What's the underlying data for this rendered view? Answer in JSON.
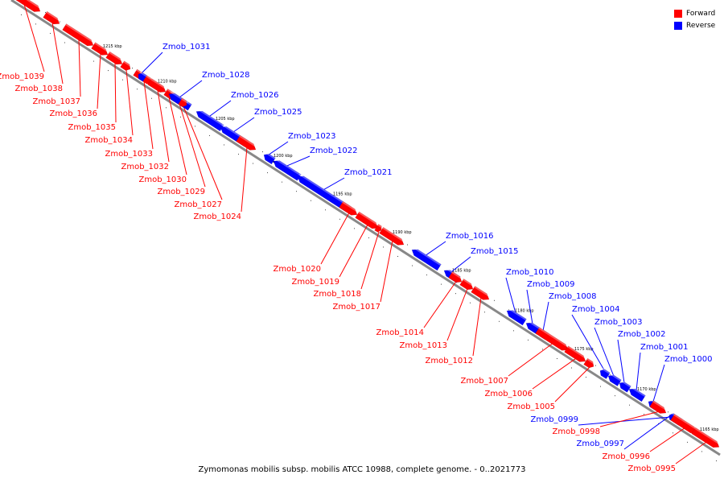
{
  "caption": "Zymomonas mobilis subsp. mobilis ATCC 10988, complete genome. - 0..2021773",
  "legend": [
    {
      "label": "Forward",
      "color": "#ff0000"
    },
    {
      "label": "Reverse",
      "color": "#0000ff"
    }
  ],
  "colors": {
    "forward": "#ff0000",
    "reverse": "#0000ff",
    "backbone": "#888888"
  },
  "ticks": [
    "1215 kbp",
    "1210 kbp",
    "1205 kbp",
    "1200 kbp",
    "1195 kbp",
    "1190 kbp",
    "1185 kbp",
    "1180 kbp",
    "1175 kbp",
    "1170 kbp",
    "1165 kbp"
  ],
  "genes": [
    {
      "name": "Zmob_1039",
      "strand": "forward"
    },
    {
      "name": "Zmob_1038",
      "strand": "forward"
    },
    {
      "name": "Zmob_1037",
      "strand": "forward"
    },
    {
      "name": "Zmob_1036",
      "strand": "forward"
    },
    {
      "name": "Zmob_1035",
      "strand": "forward"
    },
    {
      "name": "Zmob_1034",
      "strand": "forward"
    },
    {
      "name": "Zmob_1033",
      "strand": "forward"
    },
    {
      "name": "Zmob_1032",
      "strand": "forward"
    },
    {
      "name": "Zmob_1031",
      "strand": "reverse"
    },
    {
      "name": "Zmob_1030",
      "strand": "forward"
    },
    {
      "name": "Zmob_1029",
      "strand": "forward"
    },
    {
      "name": "Zmob_1028",
      "strand": "reverse"
    },
    {
      "name": "Zmob_1027",
      "strand": "forward"
    },
    {
      "name": "Zmob_1026",
      "strand": "reverse"
    },
    {
      "name": "Zmob_1025",
      "strand": "reverse"
    },
    {
      "name": "Zmob_1024",
      "strand": "forward"
    },
    {
      "name": "Zmob_1023",
      "strand": "reverse"
    },
    {
      "name": "Zmob_1022",
      "strand": "reverse"
    },
    {
      "name": "Zmob_1021",
      "strand": "reverse"
    },
    {
      "name": "Zmob_1020",
      "strand": "forward"
    },
    {
      "name": "Zmob_1019",
      "strand": "forward"
    },
    {
      "name": "Zmob_1018",
      "strand": "forward"
    },
    {
      "name": "Zmob_1017",
      "strand": "forward"
    },
    {
      "name": "Zmob_1016",
      "strand": "reverse"
    },
    {
      "name": "Zmob_1015",
      "strand": "reverse"
    },
    {
      "name": "Zmob_1014",
      "strand": "forward"
    },
    {
      "name": "Zmob_1013",
      "strand": "forward"
    },
    {
      "name": "Zmob_1012",
      "strand": "forward"
    },
    {
      "name": "Zmob_1010",
      "strand": "reverse"
    },
    {
      "name": "Zmob_1009",
      "strand": "reverse"
    },
    {
      "name": "Zmob_1008",
      "strand": "reverse"
    },
    {
      "name": "Zmob_1007",
      "strand": "forward"
    },
    {
      "name": "Zmob_1006",
      "strand": "forward"
    },
    {
      "name": "Zmob_1005",
      "strand": "forward"
    },
    {
      "name": "Zmob_1004",
      "strand": "reverse"
    },
    {
      "name": "Zmob_1003",
      "strand": "reverse"
    },
    {
      "name": "Zmob_1002",
      "strand": "reverse"
    },
    {
      "name": "Zmob_1001",
      "strand": "reverse"
    },
    {
      "name": "Zmob_1000",
      "strand": "reverse"
    },
    {
      "name": "Zmob_0999",
      "strand": "reverse"
    },
    {
      "name": "Zmob_0998",
      "strand": "forward"
    },
    {
      "name": "Zmob_0997",
      "strand": "reverse"
    },
    {
      "name": "Zmob_0996",
      "strand": "forward"
    },
    {
      "name": "Zmob_0995",
      "strand": "forward"
    }
  ]
}
